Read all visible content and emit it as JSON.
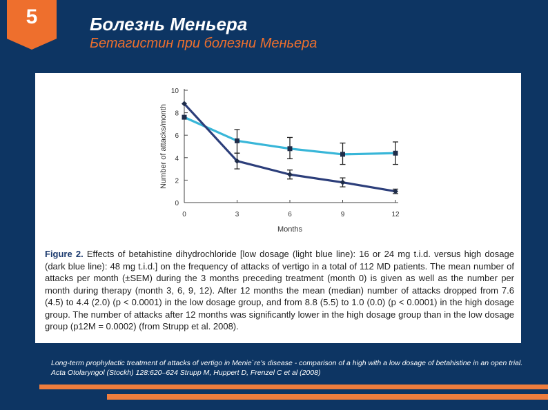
{
  "slide": {
    "number": "5",
    "title": "Болезнь Меньера",
    "subtitle": "Бетагистин при болезни Меньера",
    "reference": "Long-term prophylactic treatment of attacks of vertigo in Menie`re's disease - comparison of a high with a low dosage of betahistine in an open trial. Acta Otolaryngol (Stockh) 128:620–624 Strupp M, Huppert D, Frenzel C et al (2008)"
  },
  "caption": {
    "label": "Figure 2.",
    "text": "Effects of betahistine dihydrochloride [low dosage (light blue line): 16 or 24 mg t.i.d. versus high dosage (dark blue line): 48 mg t.i.d.] on the frequency of attacks of vertigo in a total of 112 MD patients. The mean number of attacks per month (±SEM) during the 3 months preceding treatment (month 0) is given as well as the number per month during therapy (month 3, 6, 9, 12). After 12 months the mean (median) number of attacks dropped from 7.6 (4.5) to 4.4 (2.0) (p < 0.0001) in the low dosage group, and from 8.8 (5.5) to 1.0 (0.0) (p < 0.0001) in the high dosage group. The number of attacks after 12 months was significantly lower in the high dosage group than in the low dosage group (p12M = 0.0002) (from Strupp et al. 2008)."
  },
  "colors": {
    "low_dosage": "#38b6d8",
    "high_dosage": "#2c3e7a",
    "axis": "#444444"
  },
  "chart_data": {
    "type": "line",
    "title": "",
    "xlabel": "Months",
    "ylabel": "Number of attacks/month",
    "x": [
      0,
      3,
      6,
      9,
      12
    ],
    "xticks": [
      "0",
      "3",
      "6",
      "9",
      "12"
    ],
    "yticks": [
      "0",
      "2",
      "4",
      "6",
      "8",
      "10"
    ],
    "xlim": [
      0,
      12
    ],
    "ylim": [
      0,
      10
    ],
    "series": [
      {
        "name": "Low dosage (16 or 24 mg t.i.d.)",
        "color": "#38b6d8",
        "marker": "square",
        "values": [
          7.6,
          5.5,
          4.8,
          4.3,
          4.4
        ],
        "err_low": [
          7.1,
          4.4,
          3.9,
          3.4,
          3.4
        ],
        "err_high": [
          8.1,
          6.5,
          5.8,
          5.3,
          5.4
        ]
      },
      {
        "name": "High dosage (48 mg t.i.d.)",
        "color": "#2c3e7a",
        "marker": "diamond",
        "values": [
          8.8,
          3.7,
          2.5,
          1.8,
          1.0
        ],
        "err_low": [
          8.5,
          3.0,
          2.1,
          1.4,
          0.8
        ],
        "err_high": [
          9.1,
          4.4,
          2.9,
          2.2,
          1.2
        ]
      }
    ]
  }
}
